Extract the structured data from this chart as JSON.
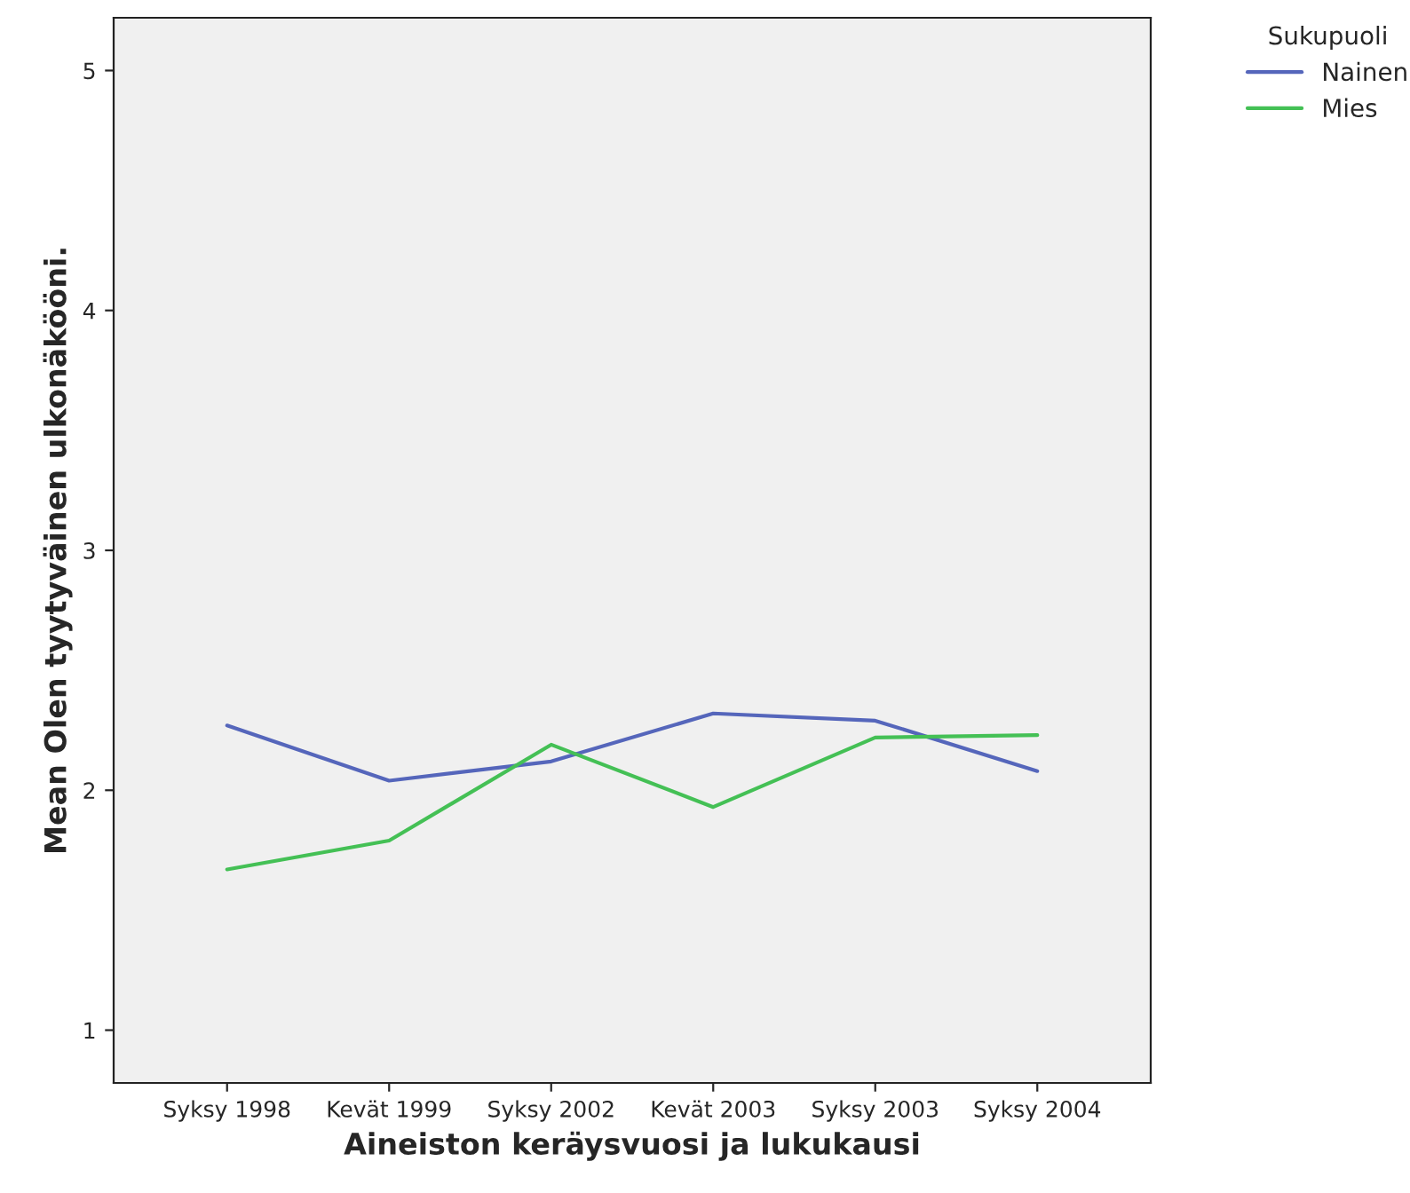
{
  "chart_data": {
    "type": "line",
    "xlabel": "Aineiston keräysvuosi ja lukukausi",
    "ylabel": "Mean Olen tyytyväinen ulkonäkööni.",
    "legend_title": "Sukupuoli",
    "legend": "top right",
    "categories": [
      "Syksy 1998",
      "Kevät 1999",
      "Syksy 2002",
      "Kevät 2003",
      "Syksy 2003",
      "Syksy 2004"
    ],
    "series": [
      {
        "name": "Nainen",
        "color": "#5566bb",
        "values": [
          2.27,
          2.04,
          2.12,
          2.32,
          2.29,
          2.08
        ]
      },
      {
        "name": "Mies",
        "color": "#44c055",
        "values": [
          1.67,
          1.79,
          2.19,
          1.93,
          2.22,
          2.23
        ]
      }
    ],
    "ylim": [
      0.78,
      5.22
    ],
    "yticks": [
      1,
      2,
      3,
      4,
      5
    ],
    "grid": false,
    "marker": "none",
    "line_style": "solid"
  }
}
